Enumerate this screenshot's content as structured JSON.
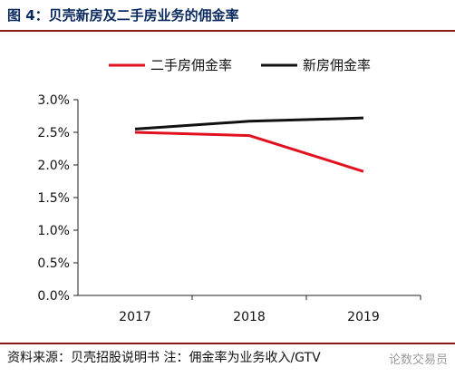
{
  "title": "图 4：贝壳新房及二手房业务的佣金率",
  "footer": "资料来源：贝壳招股说明书 注：佣金率为业务收入/GTV",
  "watermark": "论数交易员",
  "chart_data": {
    "type": "line",
    "categories": [
      "2017",
      "2018",
      "2019"
    ],
    "series": [
      {
        "name": "二手房佣金率",
        "color": "#e0121f",
        "values": [
          2.5,
          2.45,
          1.9
        ]
      },
      {
        "name": "新房佣金率",
        "color": "#111111",
        "values": [
          2.55,
          2.67,
          2.72
        ]
      }
    ],
    "ylim": [
      0,
      3.0
    ],
    "yticks": [
      "0.0%",
      "0.5%",
      "1.0%",
      "1.5%",
      "2.0%",
      "2.5%",
      "3.0%"
    ],
    "legend": "top",
    "grid": false
  }
}
